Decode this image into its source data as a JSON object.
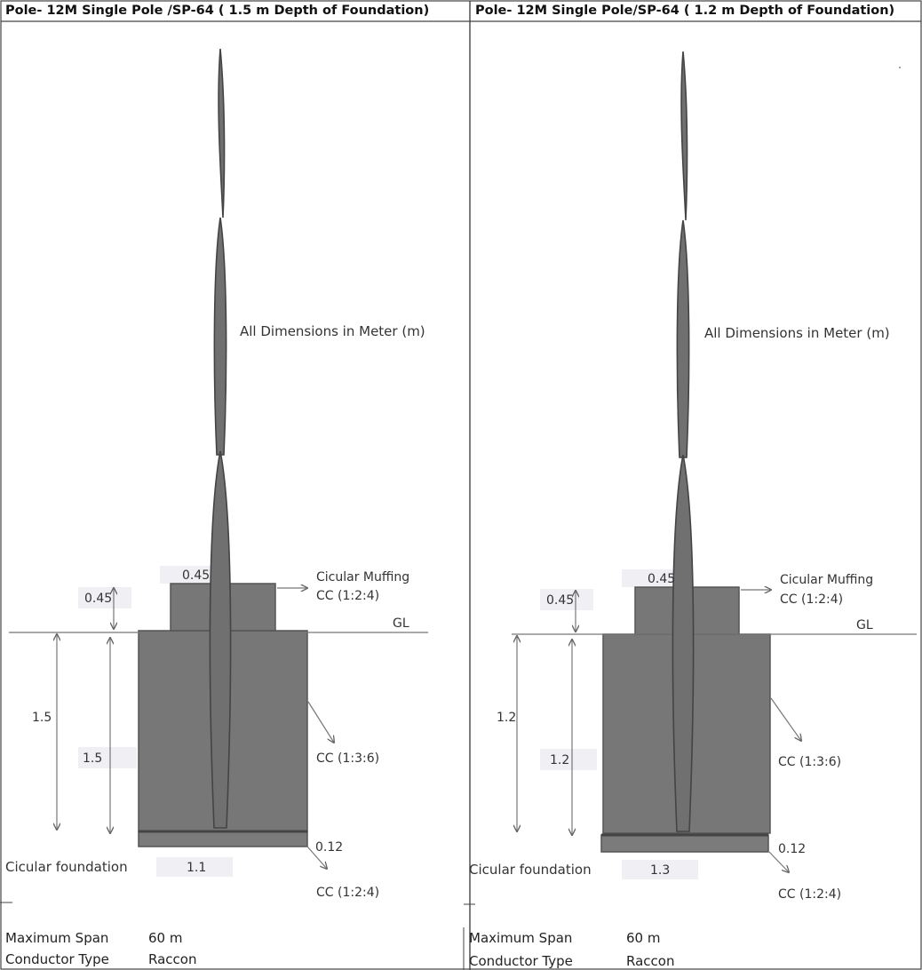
{
  "panels": [
    {
      "title": "Pole- 12M Single Pole /SP-64  ( 1.5 m Depth of Foundation)",
      "note": "All Dimensions in Meter (m)",
      "muff_top_width": "0.45",
      "muff_height": "0.45",
      "depth_outer": "1.5",
      "depth_inner": "1.5",
      "base_thickness": "0.12",
      "base_width": "1.1",
      "muffing_label": "Cicular Muffing",
      "muffing_mix": "CC (1:2:4)",
      "gl_label": "GL",
      "body_mix": "CC (1:3:6)",
      "foundation_label": "Cicular foundation",
      "base_mix": "CC (1:2:4)",
      "span_label": "Maximum Span",
      "span_value": "60 m",
      "conductor_label": "Conductor Type",
      "conductor_value": "Raccon"
    },
    {
      "title": "Pole- 12M Single Pole/SP-64  ( 1.2 m Depth of Foundation)",
      "note": "All Dimensions in Meter (m)",
      "muff_top_width": "0.45",
      "muff_height": "0.45",
      "depth_outer": "1.2",
      "depth_inner": "1.2",
      "base_thickness": "0.12",
      "base_width": "1.3",
      "muffing_label": "Cicular Muffing",
      "muffing_mix": "CC (1:2:4)",
      "gl_label": "GL",
      "body_mix": "CC (1:3:6)",
      "foundation_label": "Cicular foundation",
      "base_mix": "CC (1:2:4)",
      "span_label": "Maximum Span",
      "span_value": "60 m",
      "conductor_label": "Conductor Type",
      "conductor_value": "Raccon"
    }
  ]
}
